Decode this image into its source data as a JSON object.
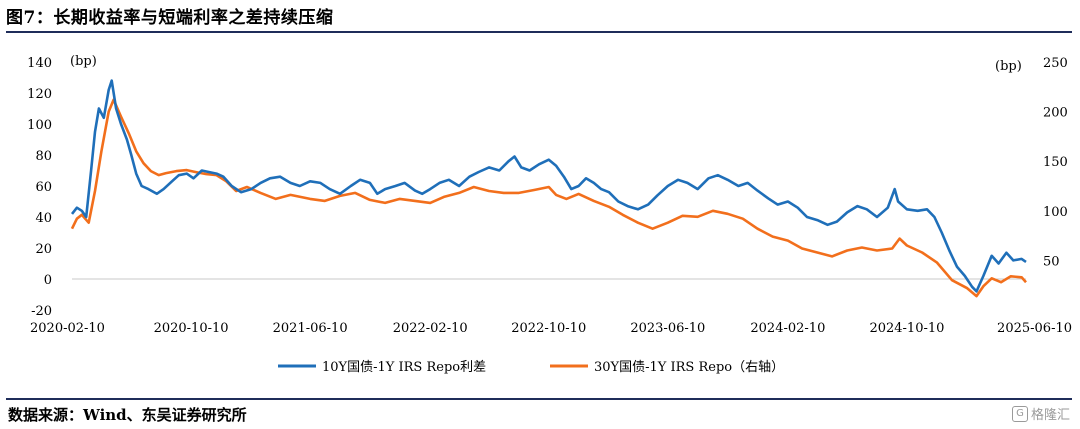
{
  "figure": {
    "title": "图7：长期收益率与短端利率之差持续压缩",
    "source": "数据来源：Wind、东吴证券研究所",
    "watermark": "格隆汇"
  },
  "colors": {
    "series_blue": "#1f6fb9",
    "series_orange": "#f26f1c",
    "zero_line": "#c8c8c8"
  },
  "chart_data": {
    "type": "line",
    "x_tick_labels": [
      "2020-02-10",
      "2020-10-10",
      "2021-06-10",
      "2022-02-10",
      "2022-10-10",
      "2023-06-10",
      "2024-02-10",
      "2024-10-10",
      "2025-06-10"
    ],
    "y_left": {
      "label": "(bp)",
      "ticks": [
        -20,
        0,
        20,
        40,
        60,
        80,
        100,
        120,
        140
      ],
      "ylim": [
        -20,
        140
      ]
    },
    "y_right": {
      "label": "(bp)",
      "ticks": [
        50,
        100,
        150,
        200,
        250
      ],
      "ylim": [
        0,
        250
      ]
    },
    "legend_position": "bottom",
    "series": [
      {
        "name": "10Y国债-1Y IRS Repo利差",
        "axis": "left",
        "color": "#1f6fb9",
        "points": [
          [
            "2020-02-10",
            42
          ],
          [
            "2020-02-20",
            46
          ],
          [
            "2020-03-01",
            44
          ],
          [
            "2020-03-10",
            40
          ],
          [
            "2020-03-20",
            70
          ],
          [
            "2020-03-28",
            95
          ],
          [
            "2020-04-05",
            110
          ],
          [
            "2020-04-15",
            104
          ],
          [
            "2020-04-25",
            122
          ],
          [
            "2020-05-01",
            128
          ],
          [
            "2020-05-10",
            110
          ],
          [
            "2020-05-20",
            100
          ],
          [
            "2020-06-01",
            90
          ],
          [
            "2020-06-10",
            80
          ],
          [
            "2020-06-20",
            68
          ],
          [
            "2020-07-01",
            60
          ],
          [
            "2020-07-15",
            58
          ],
          [
            "2020-08-01",
            55
          ],
          [
            "2020-08-15",
            58
          ],
          [
            "2020-09-01",
            63
          ],
          [
            "2020-09-15",
            67
          ],
          [
            "2020-10-01",
            68
          ],
          [
            "2020-10-15",
            65
          ],
          [
            "2020-11-01",
            70
          ],
          [
            "2020-11-15",
            69
          ],
          [
            "2020-12-01",
            68
          ],
          [
            "2020-12-15",
            66
          ],
          [
            "2021-01-01",
            60
          ],
          [
            "2021-01-20",
            56
          ],
          [
            "2021-02-10",
            58
          ],
          [
            "2021-03-01",
            62
          ],
          [
            "2021-03-20",
            65
          ],
          [
            "2021-04-10",
            66
          ],
          [
            "2021-05-01",
            62
          ],
          [
            "2021-05-20",
            60
          ],
          [
            "2021-06-10",
            63
          ],
          [
            "2021-07-01",
            62
          ],
          [
            "2021-07-20",
            58
          ],
          [
            "2021-08-10",
            55
          ],
          [
            "2021-09-01",
            60
          ],
          [
            "2021-09-20",
            64
          ],
          [
            "2021-10-10",
            62
          ],
          [
            "2021-10-25",
            55
          ],
          [
            "2021-11-10",
            58
          ],
          [
            "2021-12-01",
            60
          ],
          [
            "2021-12-20",
            62
          ],
          [
            "2022-01-10",
            57
          ],
          [
            "2022-01-25",
            55
          ],
          [
            "2022-02-10",
            58
          ],
          [
            "2022-03-01",
            62
          ],
          [
            "2022-03-20",
            64
          ],
          [
            "2022-04-10",
            60
          ],
          [
            "2022-05-01",
            66
          ],
          [
            "2022-05-20",
            69
          ],
          [
            "2022-06-10",
            72
          ],
          [
            "2022-07-01",
            70
          ],
          [
            "2022-07-20",
            76
          ],
          [
            "2022-08-01",
            79
          ],
          [
            "2022-08-15",
            72
          ],
          [
            "2022-09-01",
            70
          ],
          [
            "2022-09-20",
            74
          ],
          [
            "2022-10-10",
            77
          ],
          [
            "2022-10-25",
            73
          ],
          [
            "2022-11-10",
            66
          ],
          [
            "2022-11-25",
            58
          ],
          [
            "2022-12-10",
            60
          ],
          [
            "2022-12-25",
            65
          ],
          [
            "2023-01-10",
            62
          ],
          [
            "2023-01-25",
            58
          ],
          [
            "2023-02-10",
            56
          ],
          [
            "2023-03-01",
            50
          ],
          [
            "2023-03-20",
            47
          ],
          [
            "2023-04-10",
            45
          ],
          [
            "2023-05-01",
            48
          ],
          [
            "2023-05-20",
            54
          ],
          [
            "2023-06-10",
            60
          ],
          [
            "2023-07-01",
            64
          ],
          [
            "2023-07-20",
            62
          ],
          [
            "2023-08-10",
            58
          ],
          [
            "2023-09-01",
            65
          ],
          [
            "2023-09-20",
            67
          ],
          [
            "2023-10-10",
            64
          ],
          [
            "2023-11-01",
            60
          ],
          [
            "2023-11-20",
            62
          ],
          [
            "2023-12-10",
            57
          ],
          [
            "2024-01-01",
            52
          ],
          [
            "2024-01-20",
            48
          ],
          [
            "2024-02-10",
            50
          ],
          [
            "2024-03-01",
            46
          ],
          [
            "2024-03-20",
            40
          ],
          [
            "2024-04-10",
            38
          ],
          [
            "2024-05-01",
            35
          ],
          [
            "2024-05-20",
            37
          ],
          [
            "2024-06-10",
            43
          ],
          [
            "2024-07-01",
            47
          ],
          [
            "2024-07-20",
            45
          ],
          [
            "2024-08-10",
            40
          ],
          [
            "2024-09-01",
            46
          ],
          [
            "2024-09-15",
            58
          ],
          [
            "2024-09-22",
            50
          ],
          [
            "2024-10-10",
            45
          ],
          [
            "2024-11-01",
            44
          ],
          [
            "2024-11-20",
            45
          ],
          [
            "2024-12-05",
            40
          ],
          [
            "2024-12-20",
            30
          ],
          [
            "2025-01-05",
            18
          ],
          [
            "2025-01-20",
            8
          ],
          [
            "2025-02-05",
            2
          ],
          [
            "2025-02-20",
            -5
          ],
          [
            "2025-03-01",
            -8
          ],
          [
            "2025-03-15",
            2
          ],
          [
            "2025-04-01",
            15
          ],
          [
            "2025-04-15",
            10
          ],
          [
            "2025-05-01",
            17
          ],
          [
            "2025-05-15",
            12
          ],
          [
            "2025-06-01",
            13
          ],
          [
            "2025-06-10",
            11
          ]
        ]
      },
      {
        "name": "30Y国债-1Y IRS Repo（右轴）",
        "axis": "right",
        "color": "#f26f1c",
        "points": [
          [
            "2020-02-10",
            82
          ],
          [
            "2020-02-20",
            92
          ],
          [
            "2020-03-01",
            96
          ],
          [
            "2020-03-15",
            88
          ],
          [
            "2020-03-28",
            120
          ],
          [
            "2020-04-10",
            160
          ],
          [
            "2020-04-25",
            200
          ],
          [
            "2020-05-05",
            212
          ],
          [
            "2020-05-20",
            195
          ],
          [
            "2020-06-05",
            178
          ],
          [
            "2020-06-20",
            160
          ],
          [
            "2020-07-05",
            148
          ],
          [
            "2020-07-20",
            140
          ],
          [
            "2020-08-05",
            136
          ],
          [
            "2020-08-20",
            138
          ],
          [
            "2020-09-10",
            140
          ],
          [
            "2020-10-01",
            141
          ],
          [
            "2020-10-20",
            139
          ],
          [
            "2020-11-10",
            137
          ],
          [
            "2020-12-01",
            136
          ],
          [
            "2020-12-20",
            130
          ],
          [
            "2021-01-10",
            120
          ],
          [
            "2021-02-01",
            124
          ],
          [
            "2021-03-01",
            118
          ],
          [
            "2021-04-01",
            112
          ],
          [
            "2021-05-01",
            116
          ],
          [
            "2021-06-10",
            112
          ],
          [
            "2021-07-10",
            110
          ],
          [
            "2021-08-10",
            115
          ],
          [
            "2021-09-10",
            118
          ],
          [
            "2021-10-10",
            111
          ],
          [
            "2021-11-10",
            108
          ],
          [
            "2021-12-10",
            112
          ],
          [
            "2022-01-10",
            110
          ],
          [
            "2022-02-10",
            108
          ],
          [
            "2022-03-10",
            114
          ],
          [
            "2022-04-10",
            118
          ],
          [
            "2022-05-10",
            124
          ],
          [
            "2022-06-10",
            120
          ],
          [
            "2022-07-10",
            118
          ],
          [
            "2022-08-10",
            118
          ],
          [
            "2022-09-10",
            121
          ],
          [
            "2022-10-10",
            124
          ],
          [
            "2022-10-25",
            116
          ],
          [
            "2022-11-15",
            112
          ],
          [
            "2022-12-10",
            117
          ],
          [
            "2023-01-10",
            110
          ],
          [
            "2023-02-10",
            104
          ],
          [
            "2023-03-10",
            96
          ],
          [
            "2023-04-10",
            88
          ],
          [
            "2023-05-10",
            82
          ],
          [
            "2023-06-10",
            88
          ],
          [
            "2023-07-10",
            95
          ],
          [
            "2023-08-10",
            94
          ],
          [
            "2023-09-10",
            100
          ],
          [
            "2023-10-10",
            97
          ],
          [
            "2023-11-10",
            92
          ],
          [
            "2023-12-10",
            82
          ],
          [
            "2024-01-10",
            74
          ],
          [
            "2024-02-10",
            70
          ],
          [
            "2024-03-10",
            62
          ],
          [
            "2024-04-10",
            58
          ],
          [
            "2024-05-10",
            54
          ],
          [
            "2024-06-10",
            60
          ],
          [
            "2024-07-10",
            63
          ],
          [
            "2024-08-10",
            60
          ],
          [
            "2024-09-10",
            62
          ],
          [
            "2024-09-25",
            72
          ],
          [
            "2024-10-10",
            65
          ],
          [
            "2024-11-10",
            58
          ],
          [
            "2024-12-10",
            48
          ],
          [
            "2025-01-10",
            30
          ],
          [
            "2025-02-10",
            22
          ],
          [
            "2025-03-01",
            14
          ],
          [
            "2025-03-15",
            24
          ],
          [
            "2025-04-01",
            32
          ],
          [
            "2025-04-20",
            28
          ],
          [
            "2025-05-10",
            34
          ],
          [
            "2025-06-01",
            33
          ],
          [
            "2025-06-10",
            28
          ]
        ]
      }
    ]
  }
}
